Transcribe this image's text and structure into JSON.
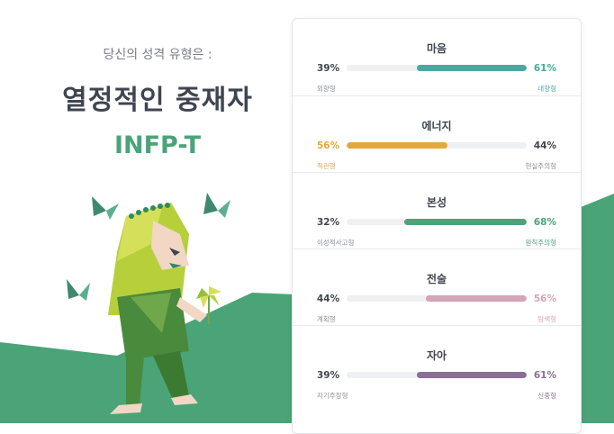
{
  "intro": {
    "lead": "당신의 성격 유형은 :",
    "headline": "열정적인 중재자",
    "type_code": "INFP-T"
  },
  "colors": {
    "hill": "#4aa478",
    "type_code": "#4aa478",
    "muted_text": "#7a7f88",
    "track": "#eef0f2"
  },
  "traits": [
    {
      "title": "마음",
      "left_pct": "39%",
      "right_pct": "61%",
      "left_label": "외향형",
      "right_label": "내향형",
      "dominant": "right",
      "value": 61,
      "color": "#4aa89f"
    },
    {
      "title": "에너지",
      "left_pct": "56%",
      "right_pct": "44%",
      "left_label": "직관형",
      "right_label": "현실주의형",
      "dominant": "left",
      "value": 56,
      "color": "#e3a93b"
    },
    {
      "title": "본성",
      "left_pct": "32%",
      "right_pct": "68%",
      "left_label": "이성적사고형",
      "right_label": "원칙주의형",
      "dominant": "right",
      "value": 68,
      "color": "#4aa478"
    },
    {
      "title": "전술",
      "left_pct": "44%",
      "right_pct": "56%",
      "left_label": "계획형",
      "right_label": "탐색형",
      "dominant": "right",
      "value": 56,
      "color": "#d4a4b8"
    },
    {
      "title": "자아",
      "left_pct": "39%",
      "right_pct": "61%",
      "left_label": "자기주장형",
      "right_label": "신중형",
      "dominant": "right",
      "value": 61,
      "color": "#8a6f97"
    }
  ]
}
